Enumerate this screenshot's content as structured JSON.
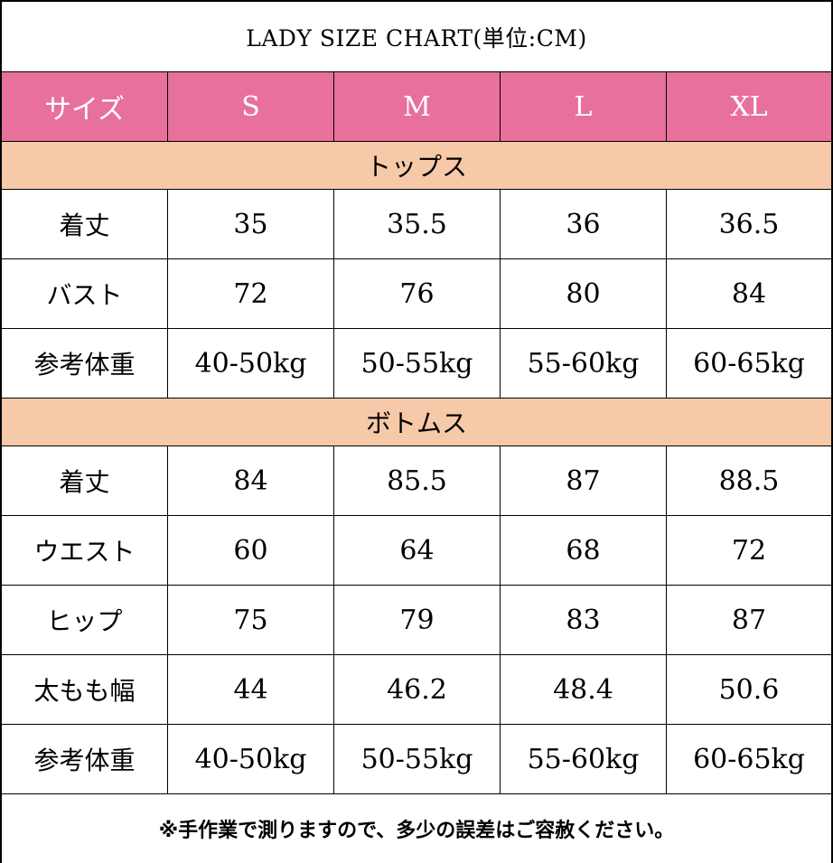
{
  "title": "LADY SIZE CHART(単位:CM)",
  "header": [
    "サイズ",
    "S",
    "M",
    "L",
    "XL"
  ],
  "sections": [
    {
      "name": "トップス",
      "rows": [
        {
          "label": "着丈",
          "values": [
            "35",
            "35.5",
            "36",
            "36.5"
          ]
        },
        {
          "label": "バスト",
          "values": [
            "72",
            "76",
            "80",
            "84"
          ]
        },
        {
          "label": "参考体重",
          "values": [
            "40-50kg",
            "50-55kg",
            "55-60kg",
            "60-65kg"
          ]
        }
      ]
    },
    {
      "name": "ボトムス",
      "rows": [
        {
          "label": "着丈",
          "values": [
            "84",
            "85.5",
            "87",
            "88.5"
          ]
        },
        {
          "label": "ウエスト",
          "values": [
            "60",
            "64",
            "68",
            "72"
          ]
        },
        {
          "label": "ヒップ",
          "values": [
            "75",
            "79",
            "83",
            "87"
          ]
        },
        {
          "label": "太もも幅",
          "values": [
            "44",
            "46.2",
            "48.4",
            "50.6"
          ]
        },
        {
          "label": "参考体重",
          "values": [
            "40-50kg",
            "50-55kg",
            "55-60kg",
            "60-65kg"
          ]
        }
      ]
    }
  ],
  "note": "※手作業で測りますので、多少の誤差はご容赦ください。",
  "colors": {
    "header_bg": "#e7709d",
    "section_bg": "#f6c9a8"
  }
}
